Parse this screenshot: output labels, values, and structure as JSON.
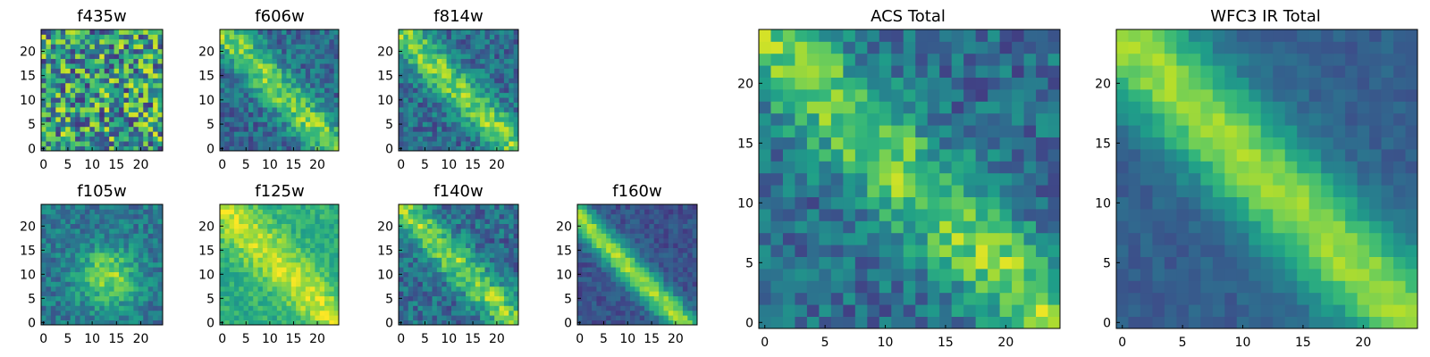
{
  "chart_data": [
    {
      "type": "heatmap",
      "title": "f435w",
      "grid": false,
      "xticks": [
        0,
        5,
        10,
        15,
        20
      ],
      "yticks": [
        0,
        5,
        10,
        15,
        20
      ],
      "xlim": [
        -0.5,
        24.5
      ],
      "ylim": [
        -0.5,
        24.5
      ],
      "z_description": "normalized pixel flux, viridis colormap",
      "pattern": "noise",
      "rows": 25,
      "cols": 25
    },
    {
      "type": "heatmap",
      "title": "f606w",
      "grid": false,
      "xticks": [
        0,
        5,
        10,
        15,
        20
      ],
      "yticks": [
        0,
        5,
        10,
        15,
        20
      ],
      "xlim": [
        -0.5,
        24.5
      ],
      "ylim": [
        -0.5,
        24.5
      ],
      "pattern": "diagonal",
      "rows": 25,
      "cols": 25
    },
    {
      "type": "heatmap",
      "title": "f814w",
      "grid": false,
      "xticks": [
        0,
        5,
        10,
        15,
        20
      ],
      "yticks": [
        0,
        5,
        10,
        15,
        20
      ],
      "xlim": [
        -0.5,
        24.5
      ],
      "ylim": [
        -0.5,
        24.5
      ],
      "pattern": "diagonal",
      "rows": 25,
      "cols": 25
    },
    {
      "type": "heatmap",
      "title": "f105w",
      "grid": false,
      "xticks": [
        0,
        5,
        10,
        15,
        20
      ],
      "yticks": [
        0,
        5,
        10,
        15,
        20
      ],
      "xlim": [
        -0.5,
        24.5
      ],
      "ylim": [
        -0.5,
        24.5
      ],
      "pattern": "blob",
      "rows": 25,
      "cols": 25
    },
    {
      "type": "heatmap",
      "title": "f125w",
      "grid": false,
      "xticks": [
        0,
        5,
        10,
        15,
        20
      ],
      "yticks": [
        0,
        5,
        10,
        15,
        20
      ],
      "xlim": [
        -0.5,
        24.5
      ],
      "ylim": [
        -0.5,
        24.5
      ],
      "pattern": "bright",
      "rows": 25,
      "cols": 25
    },
    {
      "type": "heatmap",
      "title": "f140w",
      "grid": false,
      "xticks": [
        0,
        5,
        10,
        15,
        20
      ],
      "yticks": [
        0,
        5,
        10,
        15,
        20
      ],
      "xlim": [
        -0.5,
        24.5
      ],
      "ylim": [
        -0.5,
        24.5
      ],
      "pattern": "diagonal",
      "rows": 25,
      "cols": 25
    },
    {
      "type": "heatmap",
      "title": "f160w",
      "grid": false,
      "xticks": [
        0,
        5,
        10,
        15,
        20
      ],
      "yticks": [
        0,
        5,
        10,
        15,
        20
      ],
      "xlim": [
        -0.5,
        24.5
      ],
      "ylim": [
        -0.5,
        24.5
      ],
      "pattern": "band",
      "rows": 25,
      "cols": 25
    },
    {
      "type": "heatmap",
      "title": "ACS Total",
      "grid": false,
      "xticks": [
        0,
        5,
        10,
        15,
        20
      ],
      "yticks": [
        0,
        5,
        10,
        15,
        20
      ],
      "xlim": [
        -0.5,
        24.5
      ],
      "ylim": [
        -0.5,
        24.5
      ],
      "pattern": "diagonal",
      "rows": 25,
      "cols": 25
    },
    {
      "type": "heatmap",
      "title": "WFC3 IR Total",
      "grid": false,
      "xticks": [
        0,
        5,
        10,
        15,
        20
      ],
      "yticks": [
        0,
        5,
        10,
        15,
        20
      ],
      "xlim": [
        -0.5,
        24.5
      ],
      "ylim": [
        -0.5,
        24.5
      ],
      "pattern": "smooth",
      "rows": 25,
      "cols": 25
    }
  ],
  "colormap": {
    "name": "viridis",
    "stops": [
      "#440154",
      "#482878",
      "#3e4a89",
      "#31688e",
      "#26828e",
      "#1f9e89",
      "#35b779",
      "#6ece58",
      "#b5de2b",
      "#fde725"
    ]
  }
}
